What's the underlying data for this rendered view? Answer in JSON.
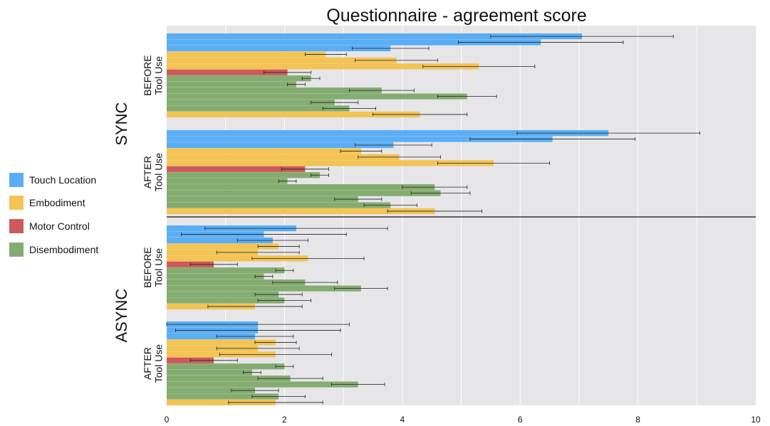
{
  "chart_data": {
    "type": "bar",
    "orientation": "horizontal",
    "title": "Questionnaire - agreement score",
    "xlabel": "",
    "ylabel": "",
    "xlim": [
      0,
      10
    ],
    "xticks": [
      0,
      2,
      4,
      6,
      8,
      10
    ],
    "grid": true,
    "legend_position": "left",
    "colors": {
      "Touch Location": "#5aaef5",
      "Embodiment": "#f3c454",
      "Motor Control": "#cc5a5a",
      "Disembodiment": "#84ac70"
    },
    "legend": [
      "Touch Location",
      "Embodiment",
      "Motor Control",
      "Disembodiment"
    ],
    "bar_categories": [
      "Touch Location",
      "Touch Location",
      "Touch Location",
      "Embodiment",
      "Embodiment",
      "Embodiment",
      "Motor Control",
      "Disembodiment",
      "Disembodiment",
      "Disembodiment",
      "Disembodiment",
      "Disembodiment",
      "Disembodiment",
      "Embodiment"
    ],
    "groups": [
      {
        "name": "SYNC",
        "subgroups": [
          {
            "label_lines": [
              "BEFORE",
              "Tool Use"
            ],
            "values": [
              7.05,
              6.35,
              3.8,
              2.7,
              3.9,
              5.3,
              2.05,
              2.45,
              2.2,
              3.65,
              5.1,
              2.85,
              3.1,
              4.3
            ],
            "errors": [
              1.55,
              1.4,
              0.65,
              0.35,
              0.7,
              0.95,
              0.4,
              0.15,
              0.15,
              0.55,
              0.5,
              0.4,
              0.45,
              0.8
            ]
          },
          {
            "label_lines": [
              "AFTER",
              "Tool Use"
            ],
            "values": [
              7.5,
              6.55,
              3.85,
              3.3,
              3.95,
              5.55,
              2.35,
              2.6,
              2.05,
              4.55,
              4.65,
              3.25,
              3.8,
              4.55
            ],
            "errors": [
              1.55,
              1.4,
              0.65,
              0.35,
              0.7,
              0.95,
              0.4,
              0.15,
              0.15,
              0.55,
              0.5,
              0.4,
              0.45,
              0.8
            ]
          }
        ]
      },
      {
        "name": "ASYNC",
        "subgroups": [
          {
            "label_lines": [
              "BEFORE",
              "Tool Use"
            ],
            "values": [
              2.2,
              1.65,
              1.8,
              1.9,
              1.55,
              2.4,
              0.8,
              2.0,
              1.65,
              2.35,
              3.3,
              1.9,
              2.0,
              1.5
            ],
            "errors": [
              1.55,
              1.4,
              0.6,
              0.35,
              0.7,
              0.95,
              0.4,
              0.15,
              0.15,
              0.55,
              0.45,
              0.4,
              0.45,
              0.8
            ]
          },
          {
            "label_lines": [
              "AFTER",
              "Tool Use"
            ],
            "values": [
              1.55,
              1.55,
              1.5,
              1.85,
              1.55,
              1.85,
              0.8,
              2.0,
              1.45,
              2.1,
              3.25,
              1.5,
              1.9,
              1.85
            ],
            "errors": [
              1.55,
              1.4,
              0.65,
              0.35,
              0.7,
              0.95,
              0.4,
              0.15,
              0.15,
              0.55,
              0.45,
              0.4,
              0.45,
              0.8
            ]
          }
        ]
      }
    ]
  }
}
